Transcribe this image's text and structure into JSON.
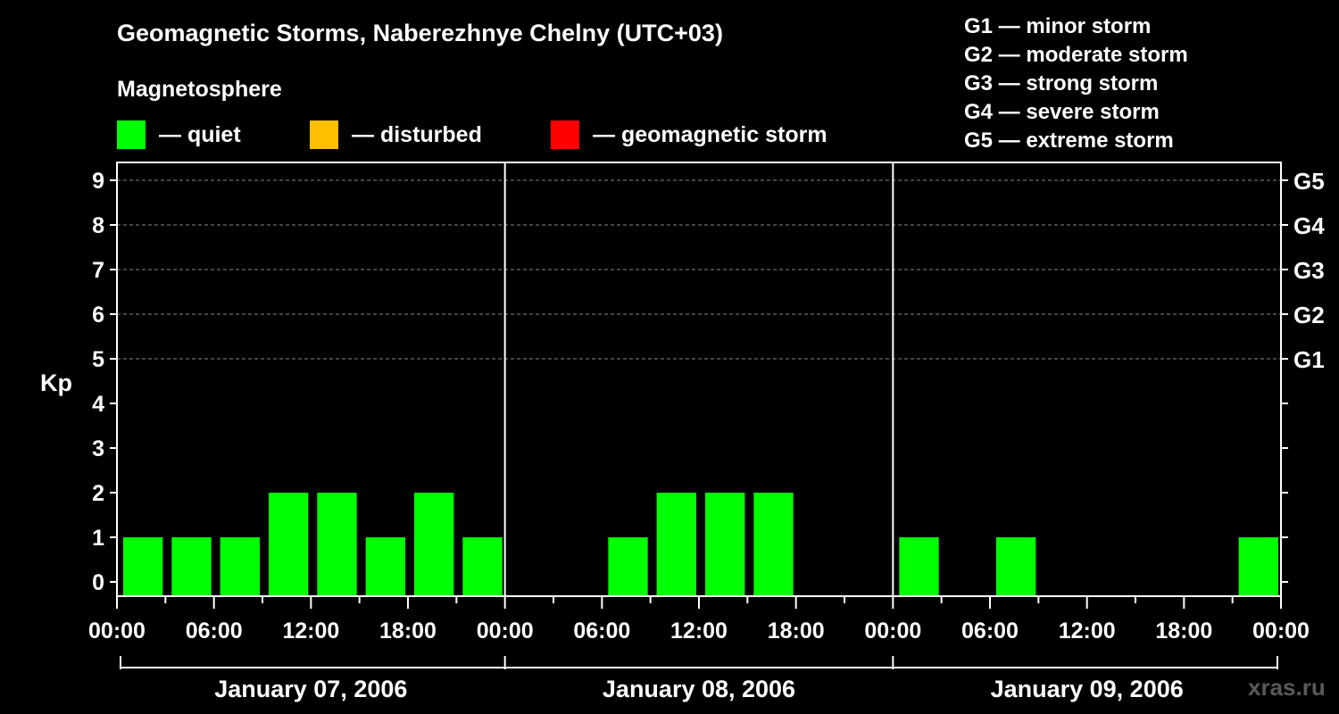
{
  "colors": {
    "quiet": "#00ff00",
    "disturbed": "#ffbf00",
    "storm": "#ff0000",
    "background": "#000000",
    "grid": "#888888"
  },
  "header": {
    "title": "Geomagnetic Storms, Naberezhnye Chelny (UTC+03)",
    "subtitle": "Magnetosphere"
  },
  "legend": {
    "quiet": "— quiet",
    "disturbed": "— disturbed",
    "storm": "— geomagnetic storm"
  },
  "g_scale": [
    "G1 — minor storm",
    "G2 — moderate storm",
    "G3 — strong storm",
    "G4 — severe storm",
    "G5 — extreme storm"
  ],
  "watermark": "xras.ru",
  "chart_data": {
    "type": "bar",
    "title": "Geomagnetic Storms, Naberezhnye Chelny (UTC+03)",
    "ylabel": "Kp",
    "ylim": [
      0,
      9
    ],
    "yticks": [
      0,
      1,
      2,
      3,
      4,
      5,
      6,
      7,
      8,
      9
    ],
    "right_axis": [
      {
        "kp": 5,
        "label": "G1"
      },
      {
        "kp": 6,
        "label": "G2"
      },
      {
        "kp": 7,
        "label": "G3"
      },
      {
        "kp": 8,
        "label": "G4"
      },
      {
        "kp": 9,
        "label": "G5"
      }
    ],
    "grid": true,
    "x_tick_labels": [
      "00:00",
      "06:00",
      "12:00",
      "18:00",
      "00:00",
      "06:00",
      "12:00",
      "18:00",
      "00:00",
      "06:00",
      "12:00",
      "18:00",
      "00:00"
    ],
    "days": [
      "January 07, 2006",
      "January 08, 2006",
      "January 09, 2006"
    ],
    "interval_hours": 3,
    "series": [
      {
        "values": [
          1,
          1,
          1,
          2,
          2,
          1,
          2,
          1,
          0,
          0,
          1,
          2,
          2,
          2,
          0,
          0,
          1,
          0,
          1,
          0,
          0,
          0,
          0,
          1
        ]
      }
    ]
  }
}
